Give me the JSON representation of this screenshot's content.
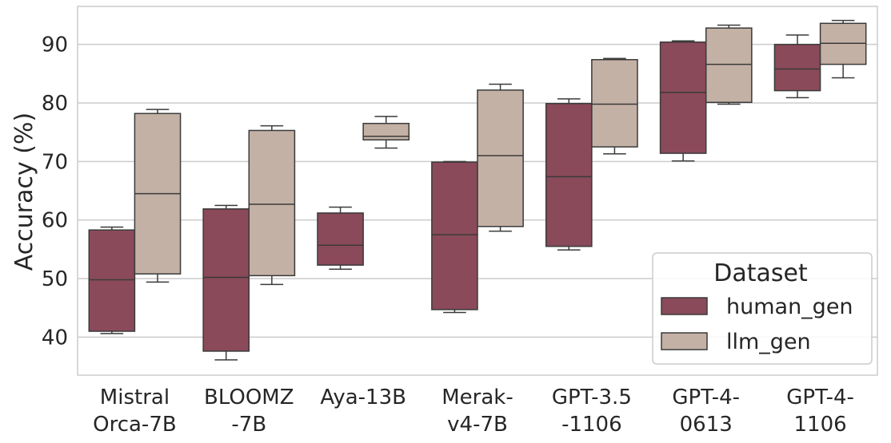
{
  "chart_data": {
    "type": "box",
    "ylabel": "Accuracy (%)",
    "ylim": [
      33.5,
      96.5
    ],
    "yticks": [
      40,
      50,
      60,
      70,
      80,
      90
    ],
    "grid": "horizontal",
    "categories": [
      [
        "Mistral",
        "Orca-7B"
      ],
      [
        "BLOOMZ",
        "-7B"
      ],
      [
        "Aya-13B"
      ],
      [
        "Merak-",
        "v4-7B"
      ],
      [
        "GPT-3.5",
        "-1106"
      ],
      [
        "GPT-4-",
        "0613"
      ],
      [
        "GPT-4-",
        "1106"
      ]
    ],
    "series": [
      {
        "name": "human_gen",
        "color": "#8a4a5a",
        "boxes": [
          {
            "whislo": 40.6,
            "q1": 41.0,
            "med": 49.8,
            "q3": 58.3,
            "whishi": 58.8
          },
          {
            "whislo": 36.1,
            "q1": 37.6,
            "med": 50.2,
            "q3": 61.9,
            "whishi": 62.5
          },
          {
            "whislo": 51.6,
            "q1": 52.3,
            "med": 55.7,
            "q3": 61.2,
            "whishi": 62.2
          },
          {
            "whislo": 44.2,
            "q1": 44.7,
            "med": 57.5,
            "q3": 69.9,
            "whishi": 70.0
          },
          {
            "whislo": 54.9,
            "q1": 55.5,
            "med": 67.4,
            "q3": 79.9,
            "whishi": 80.7
          },
          {
            "whislo": 70.1,
            "q1": 71.4,
            "med": 81.8,
            "q3": 90.4,
            "whishi": 90.6
          },
          {
            "whislo": 80.9,
            "q1": 82.1,
            "med": 85.8,
            "q3": 90.0,
            "whishi": 91.6
          }
        ]
      },
      {
        "name": "llm_gen",
        "color": "#c4b1a5",
        "boxes": [
          {
            "whislo": 49.4,
            "q1": 50.8,
            "med": 64.5,
            "q3": 78.2,
            "whishi": 78.9
          },
          {
            "whislo": 49.0,
            "q1": 50.5,
            "med": 62.7,
            "q3": 75.3,
            "whishi": 76.1
          },
          {
            "whislo": 72.3,
            "q1": 73.7,
            "med": 74.3,
            "q3": 76.5,
            "whishi": 77.7
          },
          {
            "whislo": 58.1,
            "q1": 58.9,
            "med": 71.0,
            "q3": 82.2,
            "whishi": 83.2
          },
          {
            "whislo": 71.3,
            "q1": 72.5,
            "med": 79.8,
            "q3": 87.4,
            "whishi": 87.6
          },
          {
            "whislo": 79.8,
            "q1": 80.1,
            "med": 86.6,
            "q3": 92.8,
            "whishi": 93.3
          },
          {
            "whislo": 84.3,
            "q1": 86.6,
            "med": 90.2,
            "q3": 93.6,
            "whishi": 94.1
          }
        ]
      }
    ],
    "legend": {
      "title": "Dataset",
      "placement": "lower-right",
      "entries": [
        "human_gen",
        "llm_gen"
      ]
    },
    "colors": {
      "edge": "#3a3a3a",
      "grid": "#cccccc",
      "frame": "#cccccc",
      "text": "#262626"
    }
  }
}
